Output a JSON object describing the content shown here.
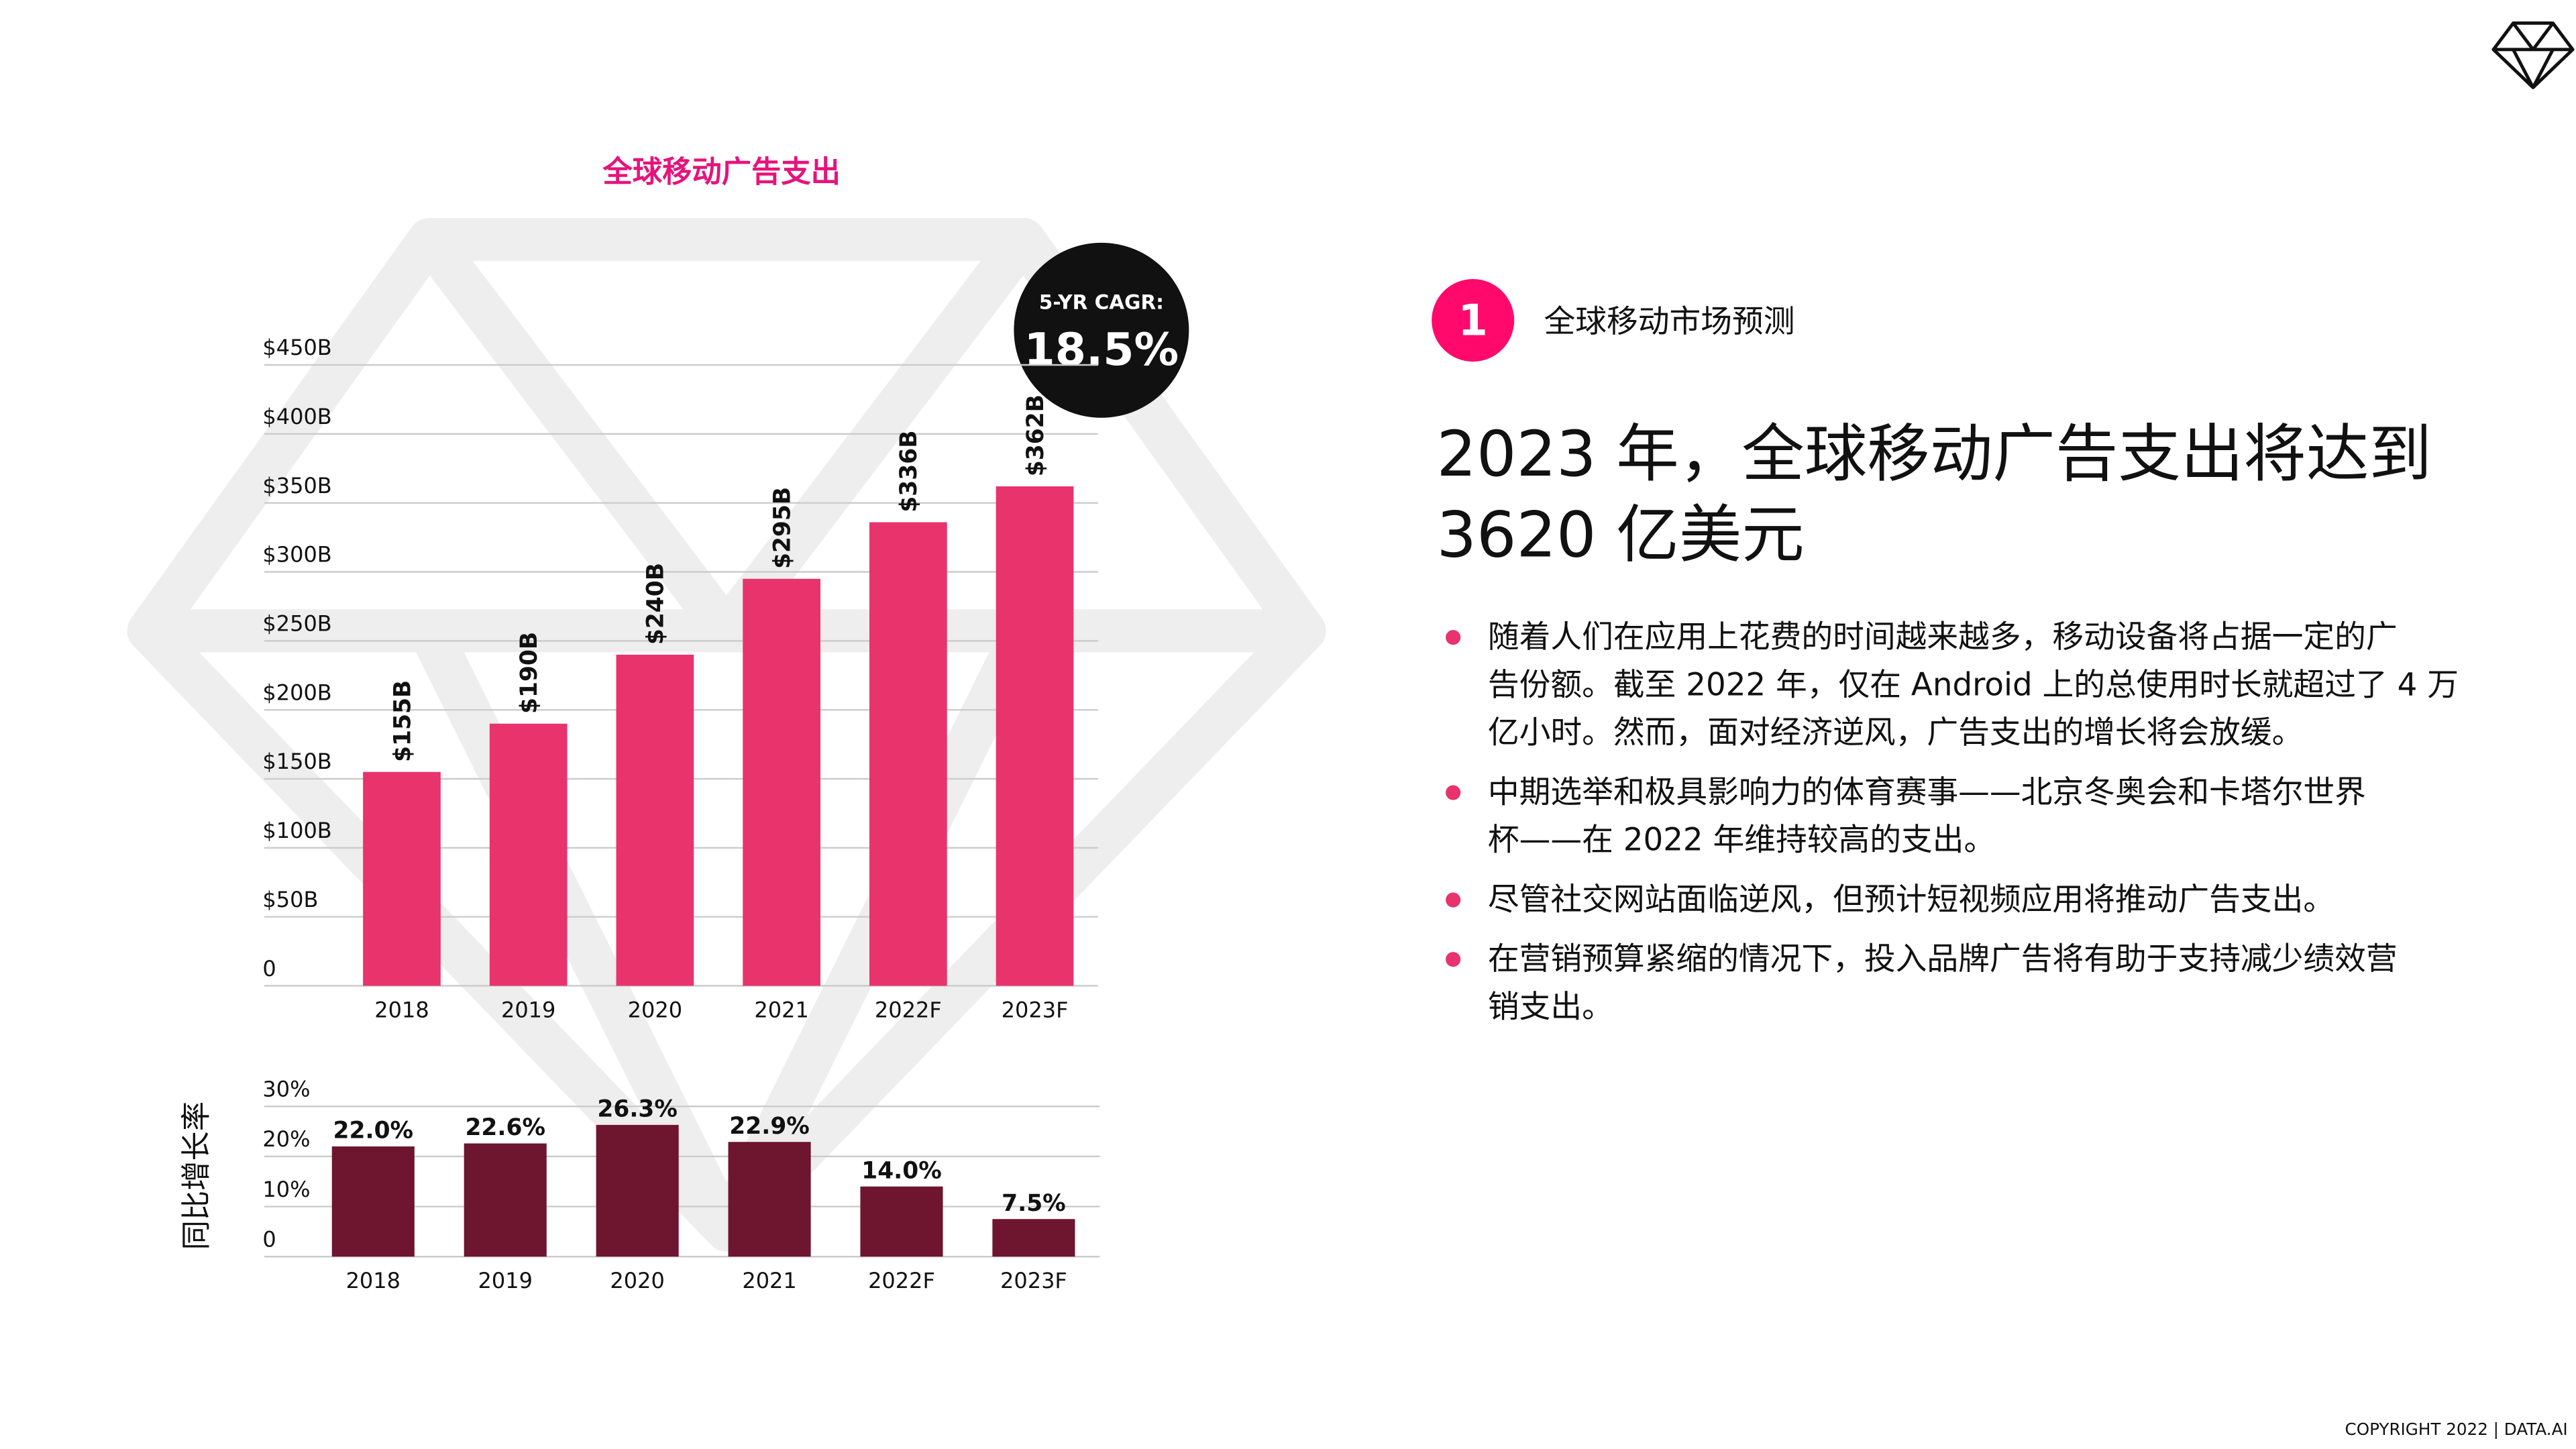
{
  "chart_data": [
    {
      "type": "bar",
      "title": "全球移动广告支出",
      "categories": [
        "2018",
        "2019",
        "2020",
        "2021",
        "2022F",
        "2023F"
      ],
      "values": [
        155,
        190,
        240,
        295,
        336,
        362
      ],
      "value_labels": [
        "$155B",
        "$190B",
        "$240B",
        "$295B",
        "$336B",
        "$362B"
      ],
      "color": "#e8336d",
      "ylim": [
        0,
        450
      ],
      "yticks": [
        0,
        {
          "value": 50,
          "label": "$50B"
        },
        {
          "value": 100,
          "label": "$100B"
        },
        {
          "value": 150,
          "label": "$150B"
        },
        {
          "value": 200,
          "label": "$200B"
        },
        {
          "value": 250,
          "label": "$250B"
        },
        {
          "value": 300,
          "label": "$300B"
        },
        {
          "value": 350,
          "label": "$350B"
        },
        {
          "value": 400,
          "label": "$400B"
        },
        {
          "value": 450,
          "label": "$450B"
        }
      ],
      "grid": true,
      "annotation": {
        "label": "5-YR CAGR:",
        "value": "18.5%"
      }
    },
    {
      "type": "bar",
      "y_label": "同比增长率",
      "categories": [
        "2018",
        "2019",
        "2020",
        "2021",
        "2022F",
        "2023F"
      ],
      "values": [
        22.0,
        22.6,
        26.3,
        22.9,
        14.0,
        7.5
      ],
      "value_labels": [
        "22.0%",
        "22.6%",
        "26.3%",
        "22.9%",
        "14.0%",
        "7.5%"
      ],
      "color": "#6e1530",
      "ylim": [
        0,
        30
      ],
      "yticks": [
        0,
        {
          "value": 10,
          "label": "10%"
        },
        {
          "value": 20,
          "label": "20%"
        },
        {
          "value": 30,
          "label": "30%"
        }
      ],
      "grid": true
    }
  ],
  "section": {
    "number": "1",
    "title": "全球移动市场预测"
  },
  "headline": [
    "2023 年，全球移动广告支出将达到",
    "3620 亿美元"
  ],
  "bullets": [
    [
      "随着人们在应用上花费的时间越来越多，移动设备将占据一定的广",
      "告份额。截至 2022 年，仅在 Android 上的总使用时长就超过了 4 万",
      "亿小时。然而，面对经济逆风，广告支出的增长将会放缓。"
    ],
    [
      "中期选举和极具影响力的体育赛事——北京冬奥会和卡塔尔世界",
      "杯——在 2022 年维持较高的支出。"
    ],
    [
      "尽管社交网站面临逆风，但预计短视频应用将推动广告支出。"
    ],
    [
      "在营销预算紧缩的情况下，投入品牌广告将有助于支持减少绩效营",
      "销支出。"
    ]
  ],
  "copyright": "COPYRIGHT 2022 | DATA.AI"
}
